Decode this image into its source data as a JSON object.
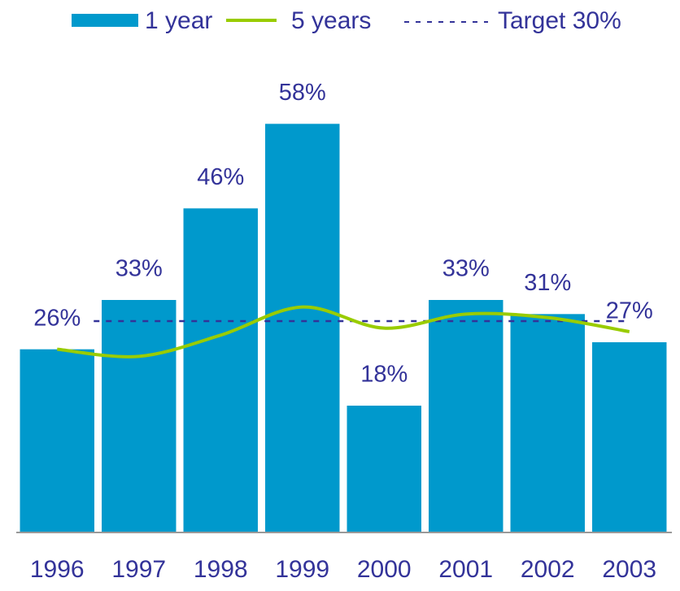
{
  "chart_data": {
    "type": "bar",
    "categories": [
      "1996",
      "1997",
      "1998",
      "1999",
      "2000",
      "2001",
      "2002",
      "2003"
    ],
    "series": [
      {
        "name": "1 year",
        "type": "bar",
        "color": "#0099cc",
        "values": [
          26,
          33,
          46,
          58,
          18,
          33,
          31,
          27
        ],
        "value_labels": [
          "26%",
          "33%",
          "46%",
          "58%",
          "18%",
          "33%",
          "31%",
          "27%"
        ]
      },
      {
        "name": "5 years",
        "type": "line",
        "color": "#99cc00",
        "values": [
          26,
          25,
          28,
          32,
          29,
          31,
          30.5,
          28.5
        ]
      }
    ],
    "target": {
      "name": "Target 30%",
      "value": 30,
      "color": "#333399"
    },
    "ylim": [
      0,
      75
    ],
    "legend": "top"
  }
}
